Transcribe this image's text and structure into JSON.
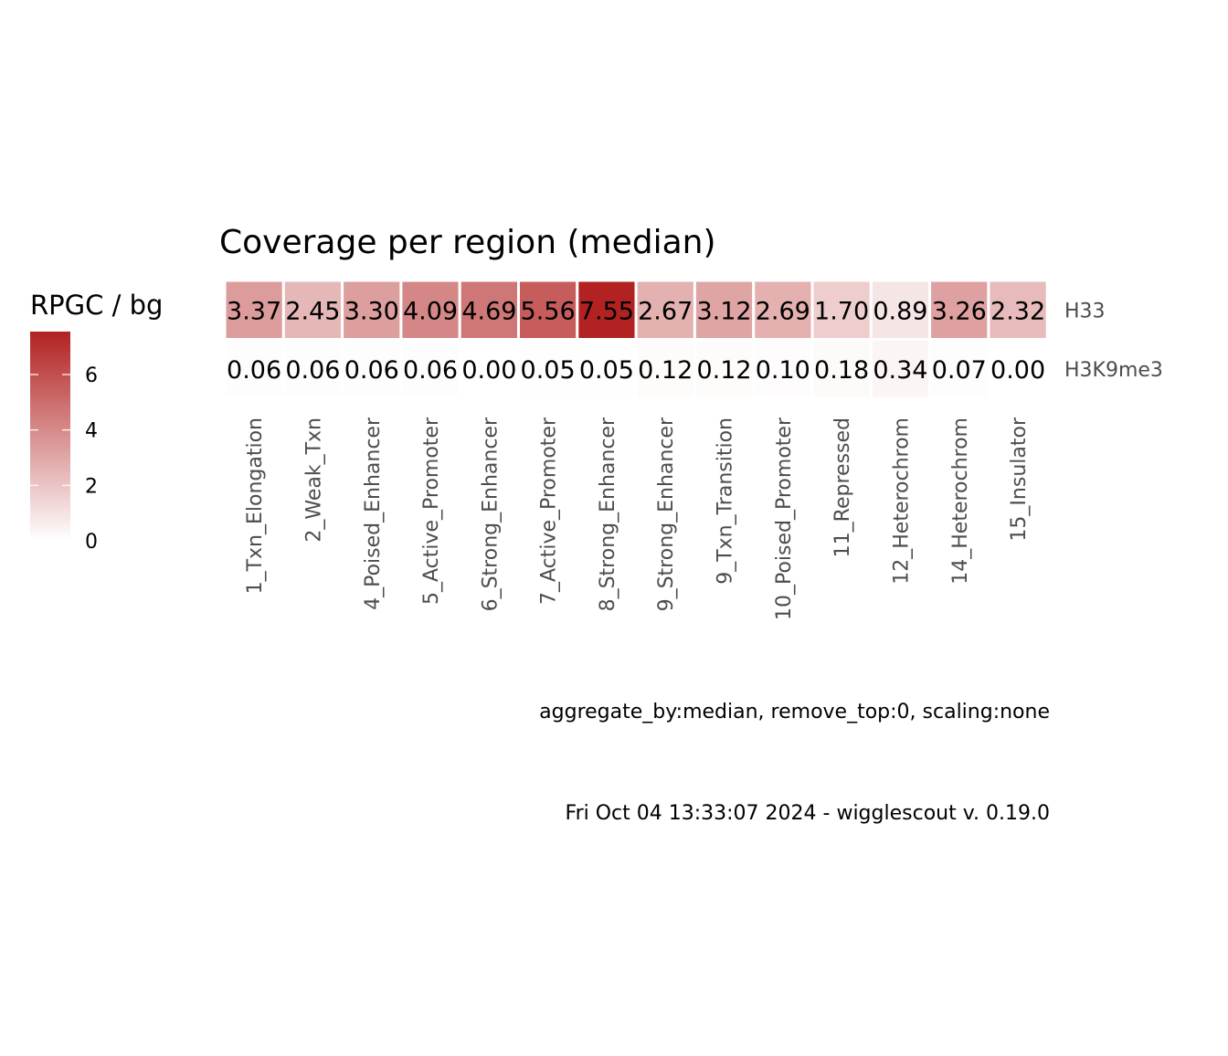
{
  "chart_data": {
    "type": "heatmap",
    "title": "Coverage per region (median)",
    "legend": {
      "title": "RPGC / bg",
      "ticks": [
        0,
        2,
        4,
        6
      ],
      "min": 0,
      "max": 7.55,
      "low_color": "#FFFFFF",
      "high_color": "#B22222",
      "placement": "left"
    },
    "columns": [
      "1_Txn_Elongation",
      "2_Weak_Txn",
      "4_Poised_Enhancer",
      "5_Active_Promoter",
      "6_Strong_Enhancer",
      "7_Active_Promoter",
      "8_Strong_Enhancer",
      "9_Strong_Enhancer",
      "9_Txn_Transition",
      "10_Poised_Promoter",
      "11_Repressed",
      "12_Heterochrom",
      "14_Heterochrom",
      "15_Insulator"
    ],
    "rows": [
      "H33",
      "H3K9me3"
    ],
    "values": [
      [
        3.37,
        2.45,
        3.3,
        4.09,
        4.69,
        5.56,
        7.55,
        2.67,
        3.12,
        2.69,
        1.7,
        0.89,
        3.26,
        2.32
      ],
      [
        0.06,
        0.06,
        0.06,
        0.06,
        0.0,
        0.05,
        0.05,
        0.12,
        0.12,
        0.1,
        0.18,
        0.34,
        0.07,
        0.0
      ]
    ],
    "caption": "aggregate_by:median, remove_top:0, scaling:none",
    "footer": "Fri Oct 04 13:33:07 2024 - wigglescout v. 0.19.0"
  }
}
